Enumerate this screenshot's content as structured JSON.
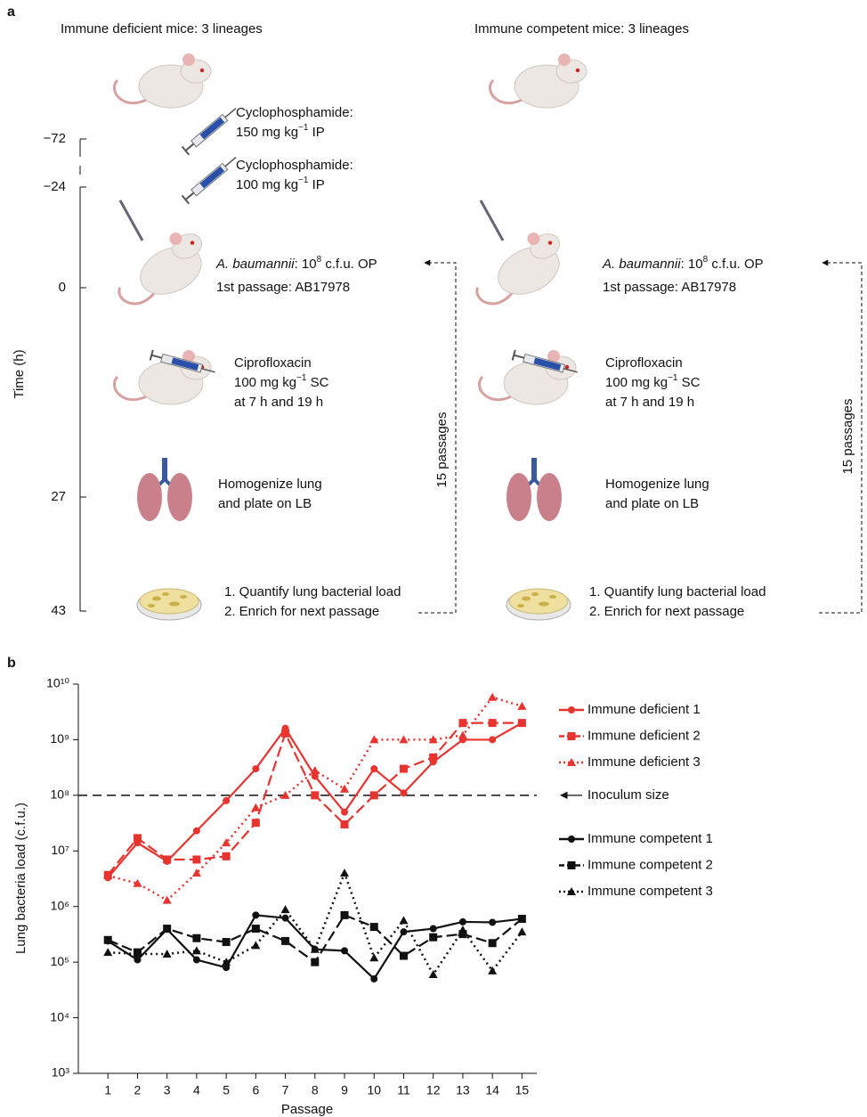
{
  "diagram": {
    "panel_label": "a",
    "columns": [
      "Immune deficient mice: 3 lineages",
      "Immune competent mice: 3 lineages"
    ],
    "time_axis": {
      "label": "Time (h)",
      "ticks": [
        "−72",
        "−24",
        "0",
        "27",
        "43"
      ]
    },
    "steps": {
      "cyclophosphamide_1": {
        "line1": "Cyclophosphamide:",
        "dose": "150 mg kg",
        "sup": "−1",
        "route": " IP"
      },
      "cyclophosphamide_2": {
        "line1": "Cyclophosphamide:",
        "dose": "100 mg kg",
        "sup": "−1",
        "route": " IP"
      },
      "infection": {
        "species": "A. baumannii",
        "dose": ": 10",
        "sup": "8",
        "unit": " c.f.u. OP",
        "line2": "1st passage: AB17978"
      },
      "antibiotic": {
        "line1": "Ciprofloxacin",
        "dose": "100 mg kg",
        "sup": "−1",
        "route": " SC",
        "line3": "at 7 h and 19 h"
      },
      "harvest": {
        "line1": "Homogenize lung",
        "line2": "and plate on LB"
      },
      "plating": {
        "line1": "1. Quantify lung bacterial load",
        "line2": "2. Enrich for next passage"
      }
    },
    "loop_label": "15 passages"
  },
  "chart_data": {
    "type": "line",
    "panel_label": "b",
    "x_label": "Passage",
    "y_label": "Lung bacteria load (c.f.u.)",
    "x": [
      1,
      2,
      3,
      4,
      5,
      6,
      7,
      8,
      9,
      10,
      11,
      12,
      13,
      14,
      15
    ],
    "xlim": [
      0,
      15.5
    ],
    "xticks": [
      1,
      2,
      3,
      4,
      5,
      6,
      7,
      8,
      9,
      10,
      11,
      12,
      13,
      14,
      15
    ],
    "yscale": "log",
    "ylim": [
      1000,
      10000000000
    ],
    "yticks": [
      {
        "value": 1000,
        "label": "10³"
      },
      {
        "value": 10000,
        "label": "10⁴"
      },
      {
        "value": 100000,
        "label": "10⁵"
      },
      {
        "value": 1000000,
        "label": "10⁶"
      },
      {
        "value": 10000000,
        "label": "10⁷"
      },
      {
        "value": 100000000,
        "label": "10⁸"
      },
      {
        "value": 1000000000,
        "label": "10⁹"
      },
      {
        "value": 10000000000,
        "label": "10¹⁰"
      }
    ],
    "reference_line": {
      "value": 100000000,
      "label": "Inoculum size"
    },
    "legend": "right",
    "series": [
      {
        "name": "Immune deficient 1",
        "color": "#e8332f",
        "dash": "solid",
        "marker": "circle",
        "values": [
          3300000,
          14000000,
          6500000,
          23000000,
          80000000,
          300000000,
          1600000000,
          220000000,
          50000000,
          300000000,
          110000000,
          400000000,
          1000000000,
          1000000000,
          2000000000
        ]
      },
      {
        "name": "Immune deficient 2",
        "color": "#e8332f",
        "dash": "dashed",
        "marker": "square",
        "values": [
          3700000,
          17000000,
          7000000,
          7000000,
          8000000,
          32000000,
          1300000000,
          100000000,
          30000000,
          100000000,
          300000000,
          480000000,
          2000000000,
          2000000000,
          2000000000
        ]
      },
      {
        "name": "Immune deficient 3",
        "color": "#e8332f",
        "dash": "dotted",
        "marker": "triangle",
        "values": [
          3600000,
          2600000,
          1300000,
          4000000,
          14000000,
          60000000,
          100000000,
          280000000,
          130000000,
          1000000000,
          1000000000,
          1000000000,
          1200000000,
          5800000000,
          4000000000
        ]
      },
      {
        "name": "Immune competent 1",
        "color": "#111111",
        "dash": "solid",
        "marker": "circle",
        "values": [
          240000,
          110000,
          390000,
          110000,
          80000,
          700000,
          620000,
          170000,
          160000,
          50000,
          350000,
          400000,
          530000,
          520000,
          600000
        ]
      },
      {
        "name": "Immune competent 2",
        "color": "#111111",
        "dash": "dashed",
        "marker": "square",
        "values": [
          250000,
          150000,
          400000,
          270000,
          230000,
          400000,
          240000,
          100000,
          700000,
          430000,
          130000,
          280000,
          320000,
          220000,
          600000
        ]
      },
      {
        "name": "Immune competent 3",
        "color": "#111111",
        "dash": "dotted",
        "marker": "triangle",
        "values": [
          150000,
          140000,
          140000,
          160000,
          100000,
          200000,
          880000,
          170000,
          4000000,
          120000,
          560000,
          60000,
          380000,
          70000,
          350000
        ]
      }
    ]
  }
}
